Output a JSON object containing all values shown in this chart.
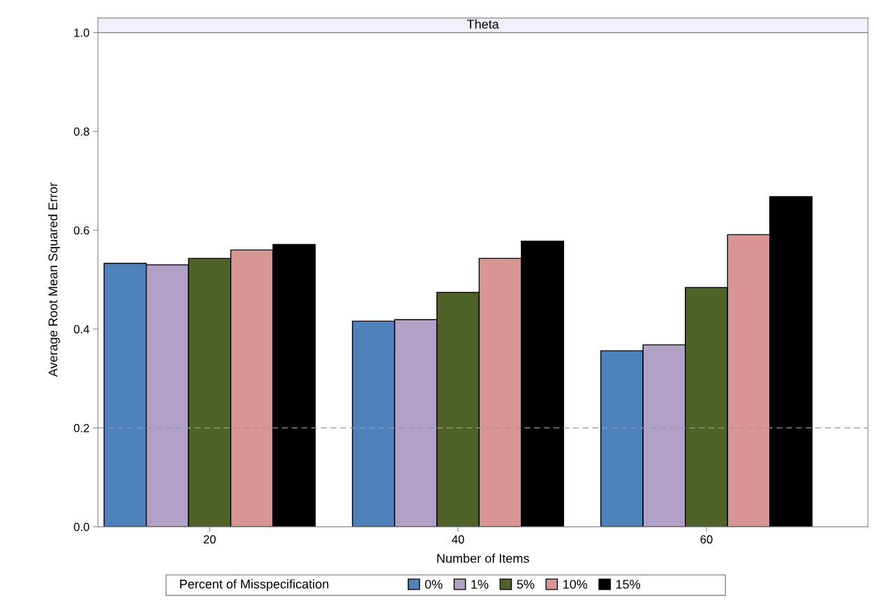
{
  "chart_data": {
    "type": "bar",
    "title": "Theta",
    "xlabel": "Number of Items",
    "ylabel": "Average Root Mean Squared Error",
    "legend_title": "Percent of Misspecification",
    "categories": [
      "20",
      "40",
      "60"
    ],
    "series": [
      {
        "name": "0%",
        "color": "#4f81bd",
        "values": [
          0.533,
          0.416,
          0.356
        ]
      },
      {
        "name": "1%",
        "color": "#b2a1c7",
        "values": [
          0.53,
          0.419,
          0.368
        ]
      },
      {
        "name": "5%",
        "color": "#4f6228",
        "values": [
          0.543,
          0.474,
          0.484
        ]
      },
      {
        "name": "10%",
        "color": "#d99594",
        "values": [
          0.56,
          0.543,
          0.591
        ]
      },
      {
        "name": "15%",
        "color": "#000000",
        "values": [
          0.571,
          0.578,
          0.668
        ]
      }
    ],
    "ylim": [
      0,
      1.0
    ],
    "yticks": [
      {
        "value": 0,
        "label": "0.0"
      },
      {
        "value": 0.2,
        "label": "0.2"
      },
      {
        "value": 0.4,
        "label": "0.4"
      },
      {
        "value": 0.6,
        "label": "0.6"
      },
      {
        "value": 0.8,
        "label": "0.8"
      },
      {
        "value": 1.0,
        "label": "1.0"
      }
    ],
    "ref_lines": [
      {
        "axis": "y",
        "value": 0.2,
        "color": "#999999",
        "line_style": "dashed"
      }
    ],
    "legend": "bottom",
    "grid": false
  }
}
